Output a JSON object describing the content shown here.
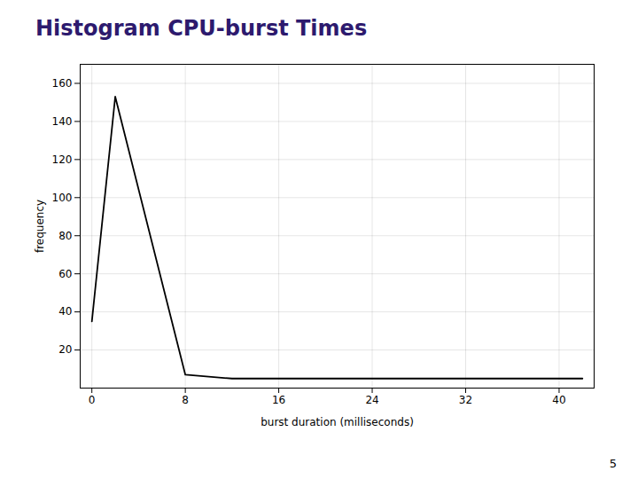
{
  "chart_data": {
    "type": "line",
    "title": "Histogram CPU-burst Times",
    "xlabel": "burst duration (milliseconds)",
    "ylabel": "frequency",
    "x": [
      0,
      2,
      8,
      12,
      16,
      24,
      32,
      40,
      42
    ],
    "values": [
      35,
      153,
      7,
      5,
      5,
      5,
      5,
      5,
      5
    ],
    "color": "#000000",
    "xlim": [
      -1,
      43
    ],
    "ylim": [
      0,
      170
    ],
    "xticks": [
      0,
      8,
      16,
      24,
      32,
      40
    ],
    "yticks": [
      20,
      40,
      60,
      80,
      100,
      120,
      140,
      160
    ],
    "grid": true,
    "annotations": [
      "5"
    ]
  }
}
